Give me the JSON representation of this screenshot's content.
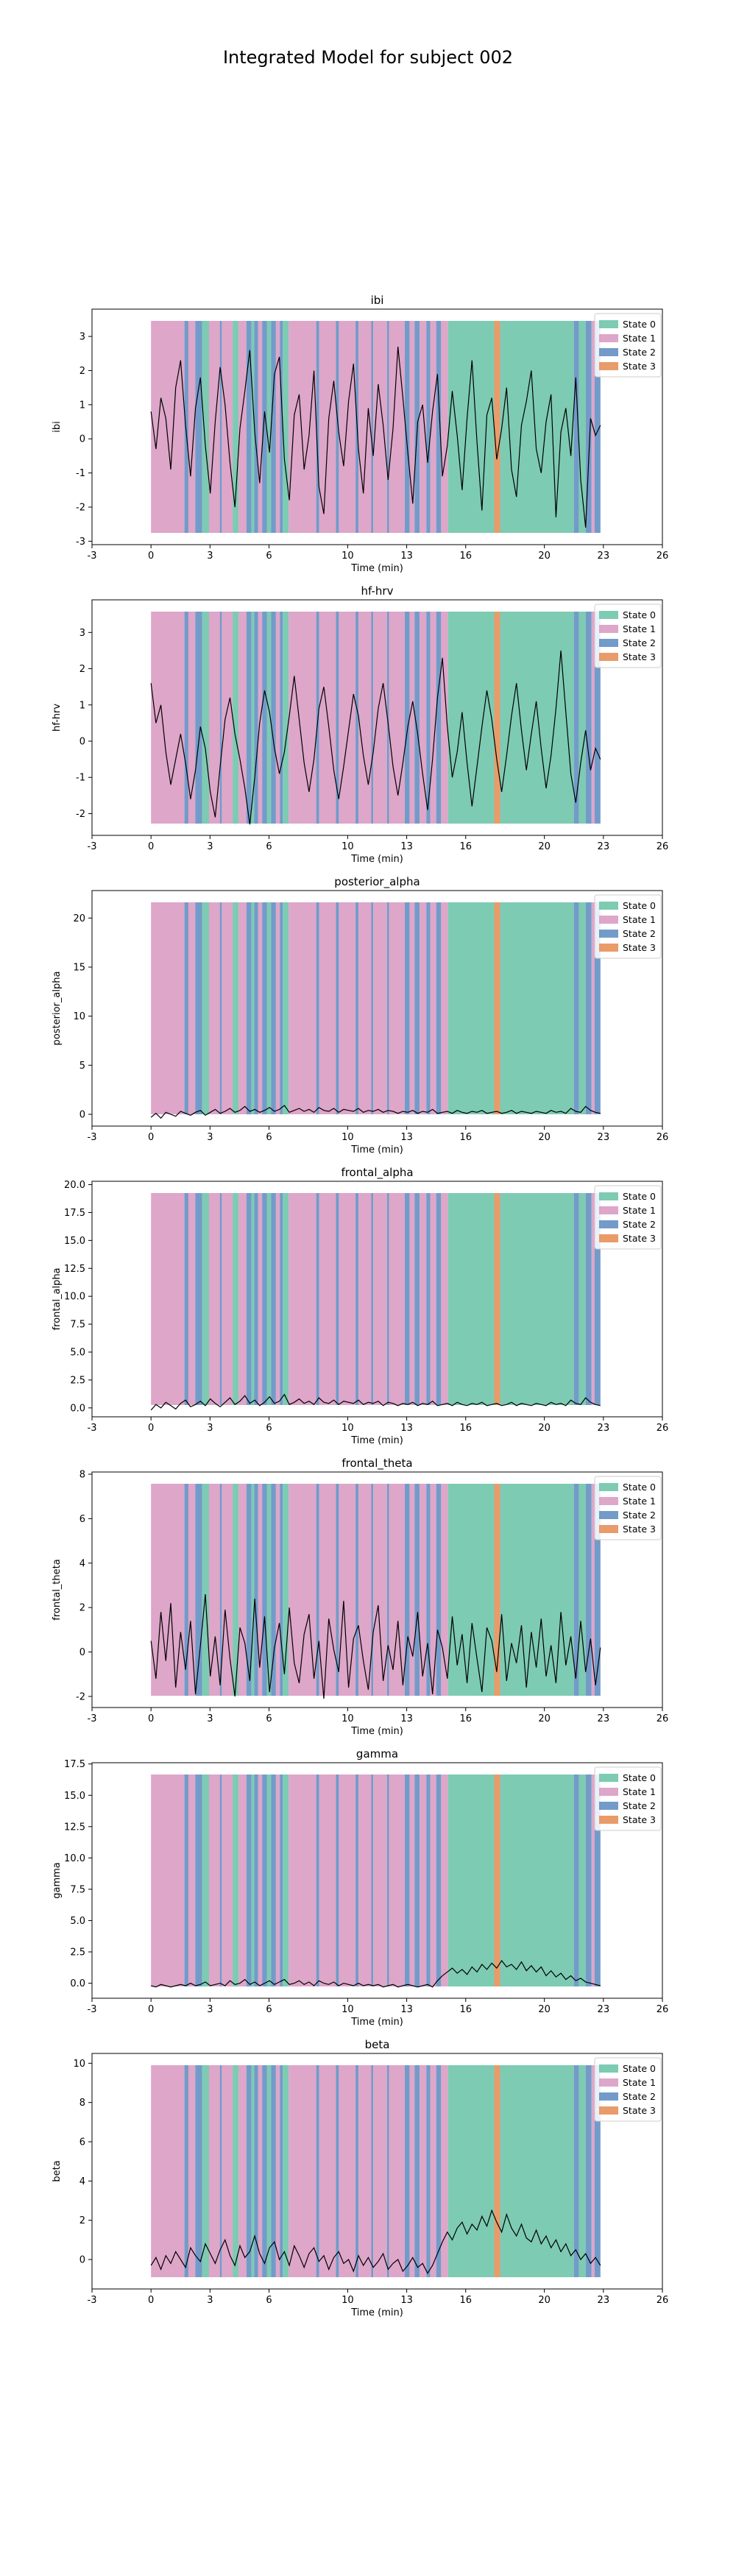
{
  "figure_title": "Integrated Model for subject 002",
  "colors": {
    "state_0": "#66c2a5",
    "state_1": "#d896c0",
    "state_2": "#5b8ac0",
    "state_3": "#e58a50",
    "signal": "#000000"
  },
  "legend_entries": [
    "State 0",
    "State 1",
    "State 2",
    "State 3"
  ],
  "state_segments": [
    {
      "state": 1,
      "start": 0.0,
      "end": 1.7
    },
    {
      "state": 2,
      "start": 1.7,
      "end": 1.9
    },
    {
      "state": 1,
      "start": 1.9,
      "end": 2.25
    },
    {
      "state": 2,
      "start": 2.25,
      "end": 2.6
    },
    {
      "state": 0,
      "start": 2.6,
      "end": 2.95
    },
    {
      "state": 1,
      "start": 2.95,
      "end": 3.5
    },
    {
      "state": 2,
      "start": 3.5,
      "end": 3.6
    },
    {
      "state": 1,
      "start": 3.6,
      "end": 4.15
    },
    {
      "state": 0,
      "start": 4.15,
      "end": 4.45
    },
    {
      "state": 1,
      "start": 4.45,
      "end": 4.85
    },
    {
      "state": 2,
      "start": 4.85,
      "end": 5.1
    },
    {
      "state": 0,
      "start": 5.1,
      "end": 5.25
    },
    {
      "state": 2,
      "start": 5.25,
      "end": 5.45
    },
    {
      "state": 1,
      "start": 5.45,
      "end": 5.65
    },
    {
      "state": 2,
      "start": 5.65,
      "end": 5.9
    },
    {
      "state": 0,
      "start": 5.9,
      "end": 6.1
    },
    {
      "state": 2,
      "start": 6.1,
      "end": 6.35
    },
    {
      "state": 1,
      "start": 6.35,
      "end": 6.55
    },
    {
      "state": 2,
      "start": 6.55,
      "end": 6.7
    },
    {
      "state": 0,
      "start": 6.7,
      "end": 7.0
    },
    {
      "state": 1,
      "start": 7.0,
      "end": 8.4
    },
    {
      "state": 2,
      "start": 8.4,
      "end": 8.55
    },
    {
      "state": 1,
      "start": 8.55,
      "end": 9.4
    },
    {
      "state": 2,
      "start": 9.4,
      "end": 9.55
    },
    {
      "state": 1,
      "start": 9.55,
      "end": 10.4
    },
    {
      "state": 2,
      "start": 10.4,
      "end": 10.55
    },
    {
      "state": 1,
      "start": 10.55,
      "end": 11.2
    },
    {
      "state": 2,
      "start": 11.2,
      "end": 11.3
    },
    {
      "state": 1,
      "start": 11.3,
      "end": 12.0
    },
    {
      "state": 2,
      "start": 12.0,
      "end": 12.1
    },
    {
      "state": 1,
      "start": 12.1,
      "end": 12.9
    },
    {
      "state": 2,
      "start": 12.9,
      "end": 13.15
    },
    {
      "state": 1,
      "start": 13.15,
      "end": 13.4
    },
    {
      "state": 2,
      "start": 13.4,
      "end": 13.65
    },
    {
      "state": 1,
      "start": 13.65,
      "end": 14.0
    },
    {
      "state": 2,
      "start": 14.0,
      "end": 14.2
    },
    {
      "state": 1,
      "start": 14.2,
      "end": 14.5
    },
    {
      "state": 2,
      "start": 14.5,
      "end": 14.75
    },
    {
      "state": 1,
      "start": 14.75,
      "end": 15.1
    },
    {
      "state": 0,
      "start": 15.1,
      "end": 17.45
    },
    {
      "state": 3,
      "start": 17.45,
      "end": 17.75
    },
    {
      "state": 0,
      "start": 17.75,
      "end": 21.5
    },
    {
      "state": 2,
      "start": 21.5,
      "end": 21.75
    },
    {
      "state": 0,
      "start": 21.75,
      "end": 22.1
    },
    {
      "state": 2,
      "start": 22.1,
      "end": 22.4
    },
    {
      "state": 1,
      "start": 22.4,
      "end": 22.55
    },
    {
      "state": 2,
      "start": 22.55,
      "end": 22.85
    }
  ],
  "chart_data": [
    {
      "type": "line",
      "title": "ibi",
      "xlabel": "Time (min)",
      "ylabel": "ibi",
      "xlim": [
        -3,
        26
      ],
      "ylim": [
        -3.1,
        3.8
      ],
      "xticks": [
        -3,
        0,
        3,
        6,
        10,
        13,
        16,
        20,
        23,
        26
      ],
      "yticks": [
        -3,
        -2,
        -1,
        0,
        1,
        2,
        3
      ],
      "legend": "upper right",
      "series": [
        {
          "x_start": 0,
          "x_end": 22.85,
          "values": [
            0.8,
            -0.3,
            1.2,
            0.6,
            -0.9,
            1.5,
            2.3,
            0.4,
            -1.1,
            0.9,
            1.8,
            -0.2,
            -1.6,
            0.5,
            2.1,
            1.0,
            -0.7,
            -2.0,
            0.3,
            1.4,
            2.6,
            0.2,
            -1.3,
            0.8,
            -0.4,
            1.9,
            2.4,
            -0.6,
            -1.8,
            0.7,
            1.3,
            -0.9,
            0.1,
            2.0,
            -1.4,
            -2.2,
            0.6,
            1.7,
            0.2,
            -0.8,
            1.1,
            2.2,
            -0.3,
            -1.6,
            0.9,
            -0.5,
            1.6,
            0.4,
            -1.2,
            0.3,
            2.7,
            1.2,
            -0.4,
            -1.9,
            0.5,
            1.0,
            -0.7,
            0.8,
            1.9,
            -1.1,
            -0.2,
            1.4,
            0.1,
            -1.5,
            0.6,
            2.3,
            -0.1,
            -2.1,
            0.7,
            1.2,
            -0.6,
            0.3,
            1.5,
            -0.9,
            -1.7,
            0.4,
            1.1,
            2.0,
            -0.3,
            -1.0,
            0.5,
            1.3,
            -2.3,
            0.2,
            0.9,
            -0.5,
            1.8,
            -1.2,
            -2.6,
            0.6,
            0.1,
            0.4
          ]
        }
      ]
    },
    {
      "type": "line",
      "title": "hf-hrv",
      "xlabel": "Time (min)",
      "ylabel": "hf-hrv",
      "xlim": [
        -3,
        26
      ],
      "ylim": [
        -2.6,
        3.9
      ],
      "xticks": [
        -3,
        0,
        3,
        6,
        10,
        13,
        16,
        20,
        23,
        26
      ],
      "yticks": [
        -2,
        -1,
        0,
        1,
        2,
        3
      ],
      "legend": "upper right",
      "series": [
        {
          "x_start": 0,
          "x_end": 22.85,
          "values": [
            1.6,
            0.5,
            1.0,
            -0.3,
            -1.2,
            -0.5,
            0.2,
            -0.6,
            -1.6,
            -0.8,
            0.4,
            -0.2,
            -1.4,
            -2.1,
            -0.7,
            0.6,
            1.2,
            0.2,
            -0.5,
            -1.3,
            -2.3,
            -1.0,
            0.5,
            1.4,
            0.8,
            -0.2,
            -0.9,
            -0.3,
            0.7,
            1.8,
            0.6,
            -0.6,
            -1.4,
            -0.5,
            0.9,
            1.5,
            0.4,
            -0.8,
            -1.6,
            -0.7,
            0.3,
            1.3,
            0.7,
            -0.4,
            -1.2,
            -0.3,
            0.9,
            1.6,
            0.5,
            -0.7,
            -1.5,
            -0.6,
            0.4,
            1.1,
            0.2,
            -0.9,
            -1.9,
            -0.5,
            1.2,
            2.3,
            0.4,
            -1.0,
            -0.3,
            0.8,
            -0.6,
            -1.8,
            -0.7,
            0.4,
            1.4,
            0.6,
            -0.5,
            -1.4,
            -0.4,
            0.7,
            1.6,
            0.3,
            -0.8,
            0.2,
            1.1,
            -0.2,
            -1.3,
            -0.4,
            0.9,
            2.5,
            0.8,
            -0.9,
            -1.7,
            -0.6,
            0.3,
            -0.8,
            -0.2,
            -0.5
          ]
        }
      ]
    },
    {
      "type": "line",
      "title": "posterior_alpha",
      "xlabel": "Time (min)",
      "ylabel": "posterior_alpha",
      "xlim": [
        -3,
        26
      ],
      "ylim": [
        -1.2,
        22.8
      ],
      "xticks": [
        -3,
        0,
        3,
        6,
        10,
        13,
        16,
        20,
        23,
        26
      ],
      "yticks": [
        0,
        5,
        10,
        15,
        20
      ],
      "legend": "upper right",
      "series": [
        {
          "x_start": 0,
          "x_end": 22.85,
          "values": [
            -0.3,
            0.1,
            -0.4,
            0.2,
            0.0,
            -0.2,
            0.3,
            0.1,
            -0.1,
            0.2,
            0.4,
            -0.1,
            0.2,
            0.5,
            0.1,
            0.3,
            0.6,
            0.2,
            0.4,
            0.8,
            0.3,
            0.5,
            0.2,
            0.4,
            0.7,
            0.3,
            0.5,
            0.9,
            0.2,
            0.4,
            0.6,
            0.3,
            0.5,
            0.2,
            0.7,
            0.4,
            0.3,
            0.6,
            0.2,
            0.5,
            0.4,
            0.3,
            0.6,
            0.2,
            0.4,
            0.3,
            0.5,
            0.2,
            0.4,
            0.3,
            0.1,
            0.3,
            0.2,
            0.4,
            0.1,
            0.3,
            0.2,
            0.5,
            0.1,
            0.2,
            0.3,
            0.1,
            0.4,
            0.2,
            0.1,
            0.3,
            0.2,
            0.4,
            0.1,
            0.2,
            0.3,
            0.1,
            0.2,
            0.4,
            0.1,
            0.3,
            0.2,
            0.1,
            0.3,
            0.2,
            0.1,
            0.4,
            0.2,
            0.3,
            0.1,
            0.6,
            0.3,
            0.2,
            0.8,
            0.4,
            0.2,
            0.1
          ]
        }
      ]
    },
    {
      "type": "line",
      "title": "frontal_alpha",
      "xlabel": "Time (min)",
      "ylabel": "frontal_alpha",
      "xlim": [
        -3,
        26
      ],
      "ylim": [
        -0.8,
        20.3
      ],
      "xticks": [
        -3,
        0,
        3,
        6,
        10,
        13,
        16,
        20,
        23,
        26
      ],
      "yticks": [
        0.0,
        2.5,
        5.0,
        7.5,
        10.0,
        12.5,
        15.0,
        17.5,
        20.0
      ],
      "legend": "upper right",
      "series": [
        {
          "x_start": 0,
          "x_end": 22.85,
          "values": [
            -0.2,
            0.3,
            0.0,
            0.5,
            0.2,
            -0.1,
            0.4,
            0.7,
            0.1,
            0.3,
            0.6,
            0.2,
            0.8,
            0.4,
            0.1,
            0.5,
            0.9,
            0.3,
            0.6,
            1.1,
            0.4,
            0.7,
            0.2,
            0.5,
            1.0,
            0.4,
            0.6,
            1.2,
            0.3,
            0.5,
            0.8,
            0.4,
            0.6,
            0.3,
            0.9,
            0.5,
            0.4,
            0.7,
            0.3,
            0.6,
            0.5,
            0.4,
            0.7,
            0.3,
            0.5,
            0.4,
            0.6,
            0.2,
            0.5,
            0.4,
            0.2,
            0.4,
            0.3,
            0.5,
            0.2,
            0.4,
            0.3,
            0.6,
            0.2,
            0.3,
            0.4,
            0.2,
            0.5,
            0.3,
            0.2,
            0.4,
            0.3,
            0.5,
            0.2,
            0.3,
            0.4,
            0.2,
            0.3,
            0.5,
            0.2,
            0.4,
            0.3,
            0.2,
            0.4,
            0.3,
            0.2,
            0.5,
            0.3,
            0.4,
            0.2,
            0.7,
            0.4,
            0.3,
            0.9,
            0.5,
            0.3,
            0.2
          ]
        }
      ]
    },
    {
      "type": "line",
      "title": "frontal_theta",
      "xlabel": "Time (min)",
      "ylabel": "frontal_theta",
      "xlim": [
        -3,
        26
      ],
      "ylim": [
        -2.5,
        8.1
      ],
      "xticks": [
        -3,
        0,
        3,
        6,
        10,
        13,
        16,
        20,
        23,
        26
      ],
      "yticks": [
        -2,
        0,
        2,
        4,
        6,
        8
      ],
      "legend": "upper right",
      "series": [
        {
          "x_start": 0,
          "x_end": 22.85,
          "values": [
            0.5,
            -1.2,
            1.8,
            -0.4,
            2.2,
            -1.6,
            0.9,
            -0.8,
            1.4,
            -1.9,
            0.3,
            2.6,
            -1.1,
            0.7,
            -1.5,
            1.9,
            -0.3,
            -2.0,
            1.1,
            0.4,
            -1.3,
            2.4,
            -0.7,
            1.6,
            -1.8,
            0.2,
            1.3,
            -1.0,
            2.0,
            -0.5,
            -1.4,
            0.8,
            1.7,
            -1.2,
            0.5,
            -2.1,
            1.5,
            0.1,
            -0.9,
            2.3,
            -1.6,
            0.6,
            1.2,
            -0.4,
            -1.7,
            0.9,
            2.1,
            -1.3,
            0.3,
            -0.8,
            1.4,
            -1.5,
            0.7,
            -0.2,
            1.8,
            -1.1,
            0.4,
            -1.9,
            1.0,
            0.2,
            -1.2,
            1.6,
            -0.6,
            0.8,
            -1.4,
            1.3,
            -0.3,
            -1.8,
            1.1,
            0.5,
            -0.9,
            1.7,
            -1.3,
            0.4,
            -0.5,
            1.2,
            -1.6,
            0.9,
            -0.7,
            1.5,
            -1.1,
            0.3,
            -1.4,
            1.8,
            -0.6,
            0.7,
            -1.2,
            1.4,
            -0.9,
            0.6,
            -1.5,
            0.2
          ]
        }
      ]
    },
    {
      "type": "line",
      "title": "gamma",
      "xlabel": "Time (min)",
      "ylabel": "gamma",
      "xlim": [
        -3,
        26
      ],
      "ylim": [
        -1.2,
        17.6
      ],
      "xticks": [
        -3,
        0,
        3,
        6,
        10,
        13,
        16,
        20,
        23,
        26
      ],
      "yticks": [
        0.0,
        2.5,
        5.0,
        7.5,
        10.0,
        12.5,
        15.0,
        17.5
      ],
      "legend": "upper right",
      "series": [
        {
          "x_start": 0,
          "x_end": 22.85,
          "values": [
            -0.2,
            -0.3,
            -0.1,
            -0.2,
            -0.3,
            -0.2,
            -0.1,
            -0.2,
            0.0,
            -0.2,
            -0.1,
            0.1,
            -0.2,
            -0.1,
            0.0,
            -0.2,
            0.2,
            -0.1,
            0.0,
            0.3,
            -0.1,
            0.1,
            -0.2,
            0.0,
            0.2,
            -0.1,
            0.1,
            0.3,
            -0.1,
            0.0,
            0.2,
            -0.1,
            0.1,
            -0.2,
            0.2,
            0.0,
            -0.1,
            0.1,
            -0.2,
            0.0,
            -0.1,
            -0.2,
            0.0,
            -0.2,
            -0.1,
            -0.2,
            -0.1,
            -0.3,
            -0.2,
            -0.1,
            -0.3,
            -0.2,
            -0.1,
            -0.2,
            -0.3,
            -0.2,
            -0.1,
            -0.3,
            0.2,
            0.6,
            0.9,
            1.2,
            0.8,
            1.1,
            0.7,
            1.3,
            0.9,
            1.5,
            1.1,
            1.6,
            1.2,
            1.8,
            1.3,
            1.5,
            1.1,
            1.7,
            1.0,
            1.4,
            0.9,
            1.3,
            0.6,
            1.0,
            0.5,
            0.8,
            0.3,
            0.6,
            0.2,
            0.4,
            0.1,
            0.0,
            -0.1,
            -0.2
          ]
        }
      ]
    },
    {
      "type": "line",
      "title": "beta",
      "xlabel": "Time (min)",
      "ylabel": "beta",
      "xlim": [
        -3,
        26
      ],
      "ylim": [
        -1.5,
        10.5
      ],
      "xticks": [
        -3,
        0,
        3,
        6,
        10,
        13,
        16,
        20,
        23,
        26
      ],
      "yticks": [
        0,
        2,
        4,
        6,
        8,
        10
      ],
      "legend": "upper right",
      "series": [
        {
          "x_start": 0,
          "x_end": 22.85,
          "values": [
            -0.3,
            0.1,
            -0.5,
            0.2,
            -0.2,
            0.4,
            0.0,
            -0.4,
            0.6,
            0.2,
            -0.1,
            0.8,
            0.3,
            -0.2,
            0.5,
            1.0,
            0.2,
            -0.3,
            0.7,
            0.1,
            0.4,
            1.2,
            0.3,
            -0.2,
            0.6,
            0.9,
            0.0,
            0.4,
            -0.3,
            0.7,
            0.2,
            -0.4,
            0.3,
            0.6,
            -0.1,
            0.2,
            -0.5,
            0.1,
            0.4,
            -0.2,
            0.0,
            -0.6,
            0.2,
            -0.3,
            0.1,
            -0.4,
            -0.1,
            0.3,
            -0.5,
            -0.2,
            0.0,
            -0.6,
            -0.3,
            0.1,
            -0.4,
            -0.2,
            -0.7,
            -0.3,
            0.3,
            0.9,
            1.4,
            1.0,
            1.6,
            1.9,
            1.3,
            1.8,
            1.5,
            2.2,
            1.7,
            2.5,
            1.9,
            1.4,
            2.3,
            1.6,
            1.2,
            1.8,
            1.1,
            0.9,
            1.5,
            0.8,
            1.2,
            0.6,
            1.0,
            0.4,
            0.8,
            0.2,
            0.5,
            0.0,
            0.3,
            -0.2,
            0.1,
            -0.3
          ]
        }
      ]
    }
  ]
}
